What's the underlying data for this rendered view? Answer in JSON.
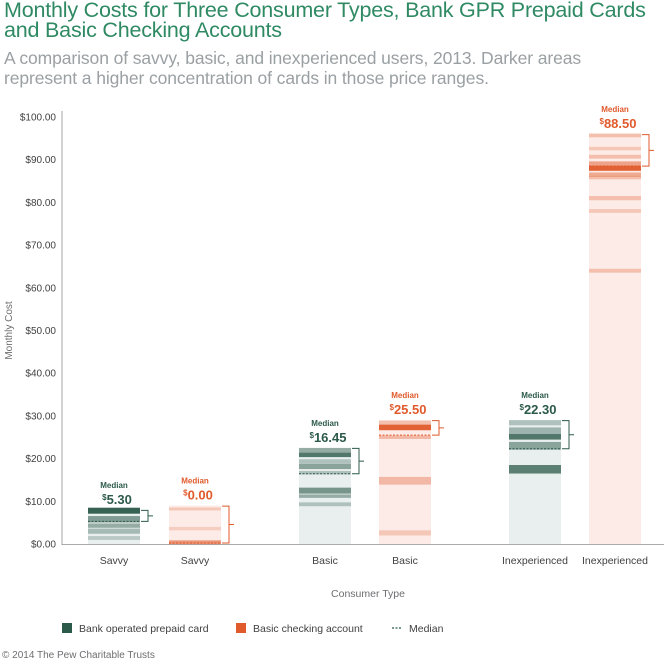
{
  "title": "Monthly Costs for Three Consumer Types, Bank GPR Prepaid Cards and Basic Checking Accounts",
  "subtitle": "A comparison of savvy, basic, and inexperienced users, 2013. Darker areas represent a higher concentration of cards in those price ranges.",
  "footer": "© 2014 The Pew Charitable Trusts",
  "colors": {
    "prepaid": "#2c5a4a",
    "prepaid_range": "#e9eeee",
    "checking": "#e05a2b",
    "checking_range": "#fcebe6",
    "title": "#2f8a64",
    "axis_text": "#414042"
  },
  "chart_data": {
    "type": "range-bar",
    "xlabel": "Consumer Type",
    "ylabel": "Monthly Cost",
    "ylim": [
      0,
      100
    ],
    "yticks": [
      "$0.00",
      "$10.00",
      "$20.00",
      "$30.00",
      "$40.00",
      "$50.00",
      "$60.00",
      "$70.00",
      "$80.00",
      "$90.00",
      "$100.00"
    ],
    "grid": false,
    "legend_position": "bottom",
    "median_label": "Median",
    "legend": [
      {
        "key": "prepaid",
        "label": "Bank operated prepaid card"
      },
      {
        "key": "checking",
        "label": "Basic checking account"
      },
      {
        "key": "median",
        "label": "Median"
      }
    ],
    "bars": [
      {
        "category": "Savvy",
        "series": "prepaid",
        "min": 0,
        "max": 8,
        "median": 5.3,
        "median_label": "5.30",
        "bands": [
          [
            7.8,
            1.4,
            0.95
          ],
          [
            5.8,
            1.5,
            0.55
          ],
          [
            4.3,
            1.0,
            0.45
          ],
          [
            3.0,
            1.2,
            0.35
          ],
          [
            1.4,
            0.9,
            0.25
          ]
        ]
      },
      {
        "category": "Savvy",
        "series": "checking",
        "min": 0,
        "max": 9,
        "median": 0.0,
        "median_label": "0.00",
        "bands": [
          [
            8.2,
            0.7,
            0.25
          ],
          [
            3.6,
            0.8,
            0.2
          ],
          [
            0.4,
            0.9,
            0.6
          ]
        ]
      },
      {
        "category": "Basic",
        "series": "prepaid",
        "min": 0,
        "max": 22.5,
        "median": 16.45,
        "median_label": "16.45",
        "bands": [
          [
            22.0,
            1.0,
            0.45
          ],
          [
            20.9,
            1.1,
            0.8
          ],
          [
            19.4,
            0.9,
            0.3
          ],
          [
            18.2,
            1.3,
            0.5
          ],
          [
            16.7,
            0.8,
            0.3
          ],
          [
            12.5,
            1.4,
            0.6
          ],
          [
            11.2,
            0.8,
            0.45
          ],
          [
            9.3,
            0.9,
            0.3
          ]
        ]
      },
      {
        "category": "Basic",
        "series": "checking",
        "min": 0,
        "max": 29,
        "median": 25.5,
        "median_label": "25.50",
        "bands": [
          [
            28.4,
            1.0,
            0.3
          ],
          [
            27.3,
            1.3,
            0.95
          ],
          [
            25.0,
            0.8,
            0.35
          ],
          [
            14.8,
            1.8,
            0.35
          ],
          [
            2.6,
            1.2,
            0.25
          ]
        ]
      },
      {
        "category": "Inexperienced",
        "series": "prepaid",
        "min": 0,
        "max": 29,
        "median": 22.3,
        "median_label": "22.30",
        "bands": [
          [
            28.4,
            1.2,
            0.3
          ],
          [
            26.5,
            1.6,
            0.4
          ],
          [
            25.1,
            1.3,
            0.8
          ],
          [
            23.0,
            1.8,
            0.5
          ],
          [
            17.5,
            2.0,
            0.75
          ]
        ]
      },
      {
        "category": "Inexperienced",
        "series": "checking",
        "min": 0,
        "max": 96,
        "median": 88.5,
        "median_label": "88.50",
        "bands": [
          [
            95.7,
            0.9,
            0.3
          ],
          [
            92.6,
            0.8,
            0.25
          ],
          [
            90.7,
            0.9,
            0.3
          ],
          [
            89.1,
            1.0,
            0.5
          ],
          [
            88.0,
            1.2,
            0.95
          ],
          [
            86.5,
            1.0,
            0.45
          ],
          [
            85.8,
            0.8,
            0.3
          ],
          [
            81.0,
            1.0,
            0.3
          ],
          [
            78.0,
            0.9,
            0.25
          ],
          [
            64.0,
            0.9,
            0.3
          ]
        ]
      }
    ]
  }
}
